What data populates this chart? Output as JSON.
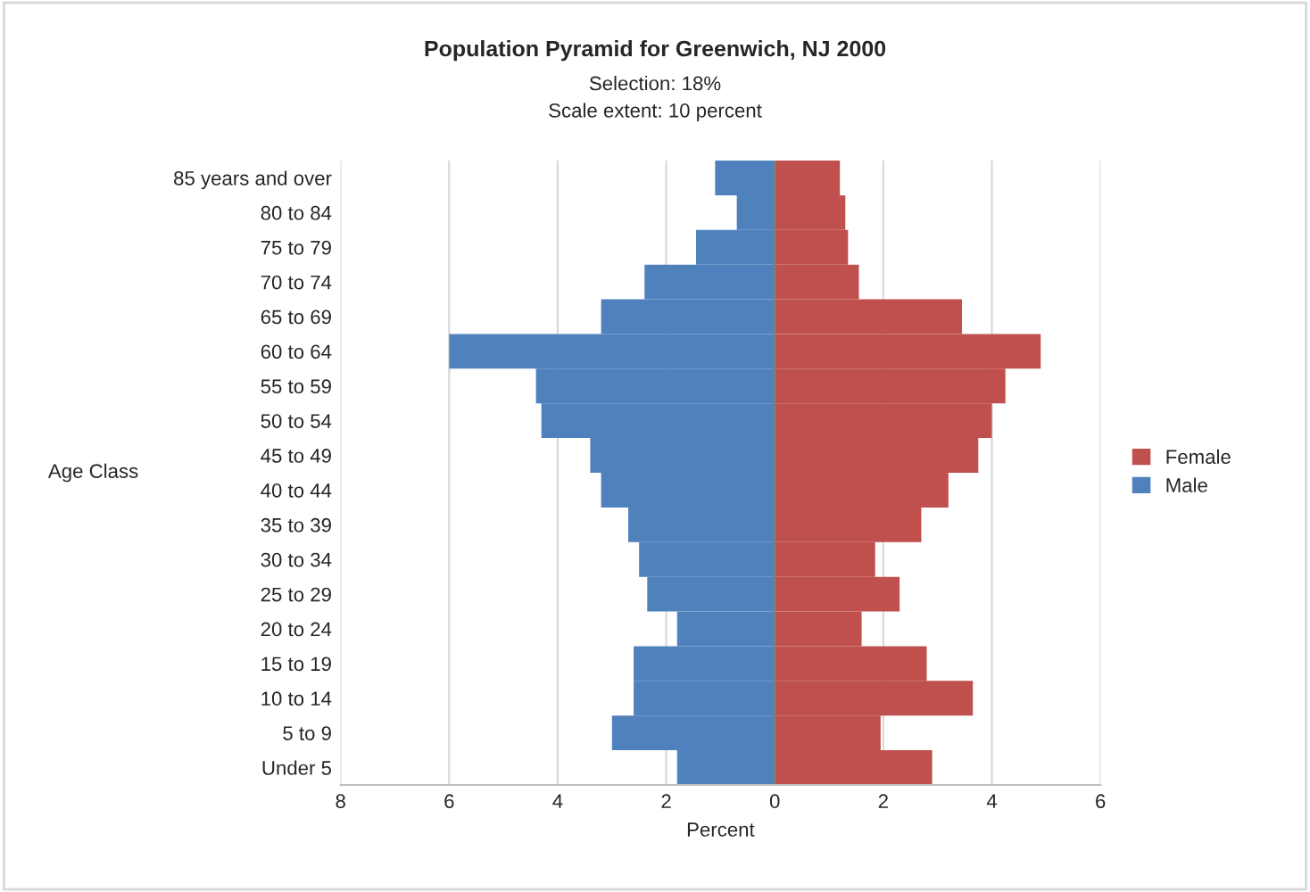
{
  "chart_data": {
    "type": "bar",
    "orientation": "horizontal",
    "stacked": true,
    "title": "Population Pyramid for Greenwich, NJ 2000",
    "subtitle": "Selection: 18%\nScale extent: 10 percent",
    "xlabel": "Percent",
    "ylabel": "Age Class",
    "categories": [
      "85 years and over",
      "80 to 84",
      "75 to 79",
      "70 to 74",
      "65 to 69",
      "60 to 64",
      "55 to 59",
      "50 to 54",
      "45 to 49",
      "40 to 44",
      "35 to 39",
      "30 to 34",
      "25 to 29",
      "20 to 24",
      "15 to 19",
      "10 to 14",
      "5 to 9",
      "Under 5"
    ],
    "series": [
      {
        "name": "Female",
        "color": "#c0504d",
        "values": [
          1.2,
          1.3,
          1.35,
          1.55,
          3.45,
          4.9,
          4.25,
          4.0,
          3.75,
          3.2,
          2.7,
          1.85,
          2.3,
          1.6,
          2.8,
          3.65,
          1.95,
          2.9
        ]
      },
      {
        "name": "Male",
        "color": "#4f81bd",
        "values": [
          -1.1,
          -0.7,
          -1.45,
          -2.4,
          -3.2,
          -6.0,
          -4.4,
          -4.3,
          -3.4,
          -3.2,
          -2.7,
          -2.5,
          -2.35,
          -1.8,
          -2.6,
          -2.6,
          -3.0,
          -1.8
        ]
      }
    ],
    "xlim": [
      -8,
      6
    ],
    "xticks": [
      {
        "value": -8,
        "label": "8"
      },
      {
        "value": -6,
        "label": "6"
      },
      {
        "value": -4,
        "label": "4"
      },
      {
        "value": -2,
        "label": "2"
      },
      0,
      2,
      4,
      6
    ],
    "grid": "x",
    "legend": "right"
  }
}
